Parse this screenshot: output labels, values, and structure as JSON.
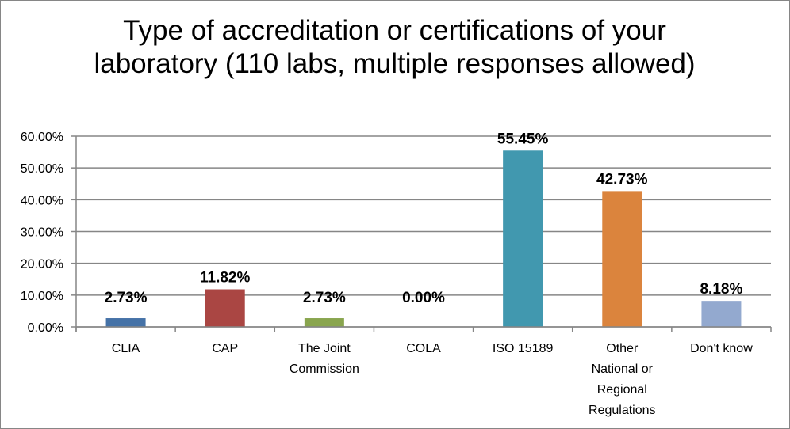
{
  "chart_data": {
    "type": "bar",
    "title": "Type of accreditation or certifications of your laboratory (110 labs, multiple responses allowed)",
    "categories": [
      "CLIA",
      "CAP",
      "The Joint Commission",
      "COLA",
      "ISO 15189",
      "Other National or Regional Regulations",
      "Don't know"
    ],
    "category_lines": [
      [
        "CLIA"
      ],
      [
        "CAP"
      ],
      [
        "The Joint",
        "Commission"
      ],
      [
        "COLA"
      ],
      [
        "ISO 15189"
      ],
      [
        "Other",
        "National or",
        "Regional",
        "Regulations"
      ],
      [
        "Don't know"
      ]
    ],
    "values": [
      2.73,
      11.82,
      2.73,
      0.0,
      55.45,
      42.73,
      8.18
    ],
    "data_labels": [
      "2.73%",
      "11.82%",
      "2.73%",
      "0.00%",
      "55.45%",
      "42.73%",
      "8.18%"
    ],
    "colors": [
      "#4572A7",
      "#AA4643",
      "#89A54E",
      "#71588F",
      "#4198AF",
      "#DB843D",
      "#93A9CF"
    ],
    "ylim": [
      0,
      60
    ],
    "yticks": [
      0,
      10,
      20,
      30,
      40,
      50,
      60
    ],
    "ytick_labels": [
      "0.00%",
      "10.00%",
      "20.00%",
      "30.00%",
      "40.00%",
      "50.00%",
      "60.00%"
    ],
    "xlabel": "",
    "ylabel": "",
    "grid": true,
    "legend": "none"
  }
}
